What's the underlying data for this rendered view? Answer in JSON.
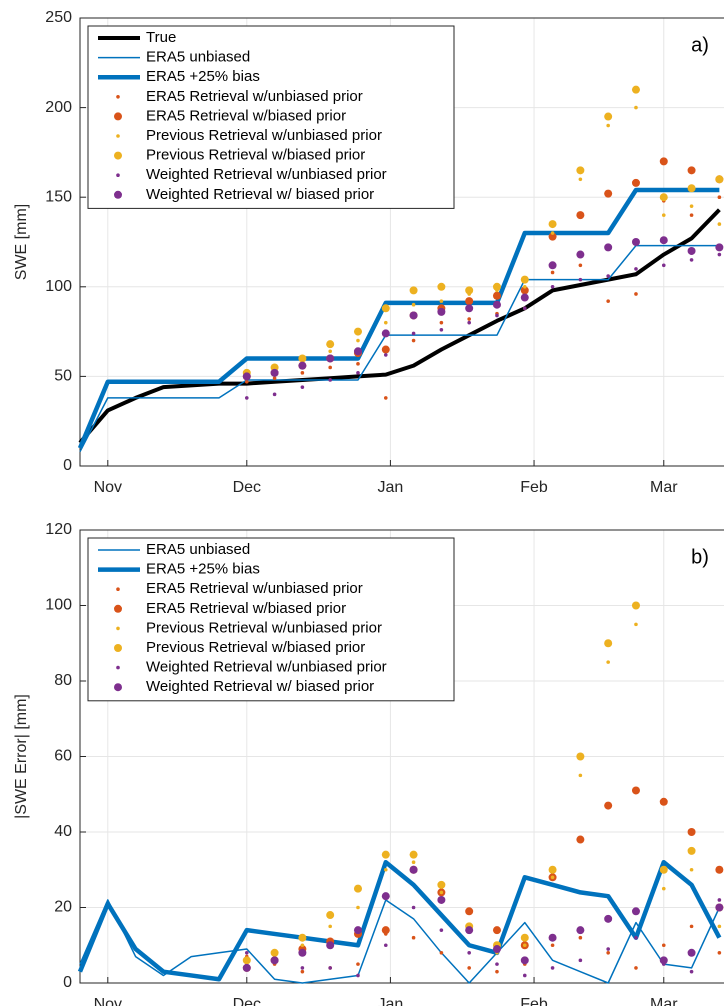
{
  "chart_data": [
    {
      "type": "line",
      "annotation": "a)",
      "y_label": "SWE [mm]",
      "x": [
        -6,
        0,
        6,
        12,
        18,
        24,
        30,
        36,
        42,
        48,
        54,
        60,
        66,
        72,
        78,
        84,
        90,
        96,
        102,
        108,
        114,
        120,
        126,
        132
      ],
      "xlim": [
        -6,
        133
      ],
      "xticks": [
        {
          "value": 0,
          "label": "Nov"
        },
        {
          "value": 30,
          "label": "Dec"
        },
        {
          "value": 61,
          "label": "Jan"
        },
        {
          "value": 92,
          "label": "Feb"
        },
        {
          "value": 120,
          "label": "Mar"
        }
      ],
      "ylim": [
        0,
        250
      ],
      "yticks": [
        0,
        50,
        100,
        150,
        200,
        250
      ],
      "grid": true,
      "series": [
        {
          "name": "True",
          "color": "#000000",
          "line_width": 4,
          "values": [
            13,
            31,
            38,
            44,
            45,
            46,
            46,
            47,
            48,
            49,
            50,
            51,
            56,
            65,
            73,
            81,
            88,
            98,
            101,
            104,
            107,
            118,
            127,
            143
          ]
        },
        {
          "name": "ERA5 unbiased",
          "color": "#0072bd",
          "line_width": 1.5,
          "values": [
            8,
            38,
            38,
            38,
            38,
            38,
            48,
            48,
            48,
            48,
            48,
            73,
            73,
            73,
            73,
            73,
            104,
            104,
            104,
            104,
            123,
            123,
            123,
            123
          ]
        },
        {
          "name": "ERA5 +25% bias",
          "color": "#0072bd",
          "line_width": 4.5,
          "values": [
            10,
            47,
            47,
            47,
            47,
            47,
            60,
            60,
            60,
            60,
            60,
            91,
            91,
            91,
            91,
            91,
            130,
            130,
            130,
            130,
            154,
            154,
            154,
            154
          ]
        },
        {
          "name": "ERA5 Retrieval w/unbiased prior",
          "color": "#d95319",
          "marker_size": 1.8,
          "values": [
            null,
            null,
            null,
            null,
            null,
            null,
            47,
            49,
            52,
            55,
            57,
            38,
            70,
            80,
            82,
            85,
            88,
            108,
            112,
            92,
            96,
            148,
            140,
            150
          ]
        },
        {
          "name": "ERA5 Retrieval w/biased prior",
          "color": "#d95319",
          "marker_size": 4,
          "values": [
            null,
            null,
            null,
            null,
            null,
            null,
            50,
            52,
            56,
            60,
            63,
            65,
            84,
            88,
            92,
            95,
            98,
            128,
            140,
            152,
            158,
            170,
            165,
            160
          ]
        },
        {
          "name": "Previous Retrieval w/unbiased prior",
          "color": "#edb120",
          "marker_size": 1.8,
          "values": [
            null,
            null,
            null,
            null,
            null,
            null,
            50,
            53,
            58,
            64,
            70,
            80,
            90,
            92,
            96,
            98,
            100,
            130,
            160,
            190,
            200,
            140,
            145,
            135
          ]
        },
        {
          "name": "Previous Retrieval w/biased prior",
          "color": "#edb120",
          "marker_size": 4,
          "values": [
            null,
            null,
            null,
            null,
            null,
            null,
            52,
            55,
            60,
            68,
            75,
            88,
            98,
            100,
            98,
            100,
            104,
            135,
            165,
            195,
            210,
            150,
            155,
            160
          ]
        },
        {
          "name": "Weighted Retrieval w/unbiased prior",
          "color": "#7e2f8e",
          "marker_size": 1.8,
          "values": [
            null,
            null,
            null,
            null,
            null,
            null,
            38,
            40,
            44,
            48,
            52,
            62,
            74,
            76,
            80,
            84,
            88,
            100,
            104,
            106,
            110,
            112,
            115,
            118
          ]
        },
        {
          "name": "Weighted Retrieval w/ biased prior",
          "color": "#7e2f8e",
          "marker_size": 4,
          "values": [
            null,
            null,
            null,
            null,
            null,
            null,
            50,
            52,
            56,
            60,
            64,
            74,
            84,
            86,
            88,
            90,
            94,
            112,
            118,
            122,
            125,
            126,
            120,
            122
          ]
        }
      ]
    },
    {
      "type": "line",
      "annotation": "b)",
      "y_label": "|SWE Error| [mm]",
      "x": [
        -6,
        0,
        6,
        12,
        18,
        24,
        30,
        36,
        42,
        48,
        54,
        60,
        66,
        72,
        78,
        84,
        90,
        96,
        102,
        108,
        114,
        120,
        126,
        132
      ],
      "xlim": [
        -6,
        133
      ],
      "xticks": [
        {
          "value": 0,
          "label": "Nov"
        },
        {
          "value": 30,
          "label": "Dec"
        },
        {
          "value": 61,
          "label": "Jan"
        },
        {
          "value": 92,
          "label": "Feb"
        },
        {
          "value": 120,
          "label": "Mar"
        }
      ],
      "ylim": [
        0,
        120
      ],
      "yticks": [
        0,
        20,
        40,
        60,
        80,
        100,
        120
      ],
      "grid": true,
      "series": [
        {
          "name": "ERA5 unbiased",
          "color": "#0072bd",
          "line_width": 1.5,
          "values": [
            5,
            22,
            7,
            2,
            7,
            8,
            9,
            1,
            0,
            1,
            2,
            22,
            17,
            8,
            0,
            8,
            16,
            6,
            3,
            0,
            16,
            5,
            4,
            20
          ]
        },
        {
          "name": "ERA5 +25% bias",
          "color": "#0072bd",
          "line_width": 4.5,
          "values": [
            3,
            21,
            9,
            3,
            2,
            1,
            14,
            13,
            12,
            11,
            10,
            32,
            26,
            18,
            10,
            8,
            28,
            26,
            24,
            23,
            12,
            32,
            26,
            12
          ]
        },
        {
          "name": "ERA5 Retrieval w/unbiased prior",
          "color": "#d95319",
          "marker_size": 1.8,
          "values": [
            null,
            null,
            null,
            null,
            null,
            null,
            7,
            5,
            3,
            4,
            5,
            13,
            12,
            8,
            4,
            3,
            5,
            10,
            12,
            8,
            4,
            10,
            15,
            8
          ]
        },
        {
          "name": "ERA5 Retrieval w/biased prior",
          "color": "#d95319",
          "marker_size": 4,
          "values": [
            null,
            null,
            null,
            null,
            null,
            null,
            4,
            6,
            9,
            11,
            13,
            14,
            30,
            24,
            19,
            14,
            10,
            28,
            38,
            47,
            51,
            48,
            40,
            30
          ]
        },
        {
          "name": "Previous Retrieval w/unbiased prior",
          "color": "#edb120",
          "marker_size": 1.8,
          "values": [
            null,
            null,
            null,
            null,
            null,
            null,
            4,
            6,
            10,
            15,
            20,
            30,
            32,
            24,
            14,
            8,
            10,
            28,
            55,
            85,
            95,
            25,
            30,
            15
          ]
        },
        {
          "name": "Previous Retrieval w/biased prior",
          "color": "#edb120",
          "marker_size": 4,
          "values": [
            null,
            null,
            null,
            null,
            null,
            null,
            6,
            8,
            12,
            18,
            25,
            34,
            34,
            26,
            15,
            10,
            12,
            30,
            60,
            90,
            100,
            30,
            35,
            20
          ]
        },
        {
          "name": "Weighted Retrieval w/unbiased prior",
          "color": "#7e2f8e",
          "marker_size": 1.8,
          "values": [
            null,
            null,
            null,
            null,
            null,
            null,
            8,
            6,
            4,
            4,
            2,
            10,
            20,
            14,
            8,
            5,
            2,
            4,
            6,
            9,
            12,
            5,
            3,
            22
          ]
        },
        {
          "name": "Weighted Retrieval w/ biased prior",
          "color": "#7e2f8e",
          "marker_size": 4,
          "values": [
            null,
            null,
            null,
            null,
            null,
            null,
            4,
            6,
            8,
            10,
            14,
            23,
            30,
            22,
            14,
            9,
            6,
            12,
            14,
            17,
            19,
            6,
            8,
            20
          ]
        }
      ]
    }
  ]
}
